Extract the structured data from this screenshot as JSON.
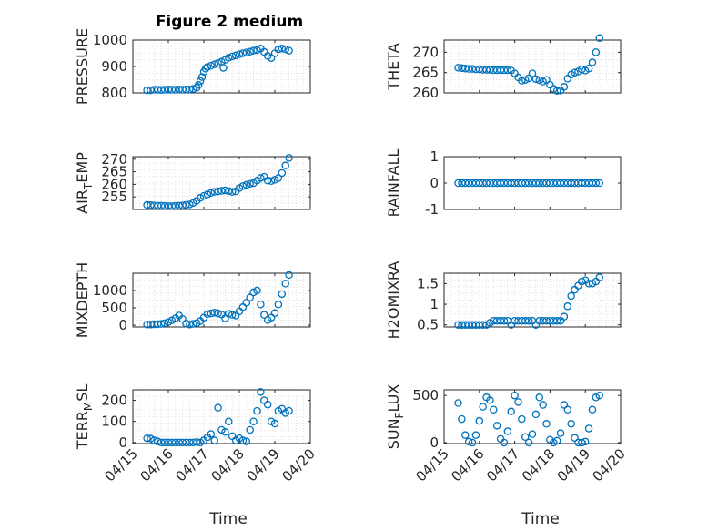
{
  "title": "Figure 2 medium",
  "xlabel": "Time",
  "x_ticks": [
    "04/15",
    "04/16",
    "04/17",
    "04/18",
    "04/19",
    "04/20"
  ],
  "marker_color": "#0072BD",
  "chart_data": [
    {
      "type": "scatter",
      "ylabel": "PRESSURE",
      "ylim": [
        800,
        1000
      ],
      "yticks": [
        "800",
        "900",
        "1000"
      ],
      "grid": true,
      "xlim": [
        0,
        5
      ],
      "x": [
        0.4,
        0.5,
        0.6,
        0.7,
        0.8,
        0.9,
        1.0,
        1.1,
        1.2,
        1.3,
        1.4,
        1.5,
        1.6,
        1.7,
        1.8,
        1.85,
        1.9,
        1.95,
        2.0,
        2.05,
        2.1,
        2.2,
        2.3,
        2.4,
        2.5,
        2.55,
        2.6,
        2.7,
        2.8,
        2.9,
        3.0,
        3.1,
        3.2,
        3.3,
        3.4,
        3.5,
        3.6,
        3.7,
        3.8,
        3.9,
        4.0,
        4.1,
        4.2,
        4.3,
        4.4
      ],
      "y": [
        810,
        810,
        812,
        812,
        811,
        812,
        813,
        812,
        812,
        813,
        812,
        813,
        813,
        815,
        820,
        830,
        845,
        860,
        880,
        892,
        898,
        903,
        908,
        913,
        918,
        895,
        925,
        933,
        938,
        942,
        946,
        950,
        953,
        956,
        960,
        962,
        968,
        955,
        940,
        932,
        950,
        965,
        968,
        965,
        960
      ]
    },
    {
      "type": "scatter",
      "ylabel": "THETA",
      "ylim": [
        260,
        273
      ],
      "yticks": [
        "260",
        "265",
        "270"
      ],
      "grid": true,
      "xlim": [
        0,
        5
      ],
      "x": [
        0.4,
        0.5,
        0.6,
        0.7,
        0.8,
        0.9,
        1.0,
        1.1,
        1.2,
        1.3,
        1.4,
        1.5,
        1.6,
        1.7,
        1.8,
        1.9,
        2.0,
        2.1,
        2.2,
        2.3,
        2.4,
        2.5,
        2.6,
        2.7,
        2.8,
        2.9,
        3.0,
        3.1,
        3.2,
        3.3,
        3.4,
        3.5,
        3.6,
        3.7,
        3.8,
        3.9,
        4.0,
        4.1,
        4.2,
        4.3,
        4.4
      ],
      "y": [
        266.2,
        266.1,
        266.0,
        265.9,
        265.9,
        265.8,
        265.8,
        265.7,
        265.7,
        265.7,
        265.6,
        265.6,
        265.6,
        265.6,
        265.6,
        265.5,
        264.8,
        263.8,
        263.0,
        263.2,
        263.6,
        264.8,
        263.4,
        263.1,
        262.8,
        263.2,
        262.0,
        261.0,
        260.5,
        260.6,
        261.5,
        263.5,
        264.5,
        265.0,
        265.3,
        265.8,
        265.5,
        266.0,
        267.5,
        270.0,
        273.5
      ]
    },
    {
      "type": "scatter",
      "ylabel": "AIR_TEMP",
      "ylim": [
        250,
        271
      ],
      "yticks": [
        "255",
        "260",
        "265",
        "270"
      ],
      "grid": true,
      "xlim": [
        0,
        5
      ],
      "x": [
        0.4,
        0.5,
        0.6,
        0.7,
        0.8,
        0.9,
        1.0,
        1.1,
        1.2,
        1.3,
        1.4,
        1.5,
        1.6,
        1.7,
        1.8,
        1.9,
        2.0,
        2.1,
        2.2,
        2.3,
        2.4,
        2.5,
        2.6,
        2.7,
        2.8,
        2.9,
        3.0,
        3.1,
        3.2,
        3.3,
        3.4,
        3.5,
        3.6,
        3.7,
        3.8,
        3.9,
        4.0,
        4.1,
        4.2,
        4.3,
        4.4
      ],
      "y": [
        251.8,
        251.7,
        251.6,
        251.5,
        251.5,
        251.4,
        251.3,
        251.3,
        251.4,
        251.5,
        251.6,
        251.8,
        252.0,
        252.6,
        253.5,
        254.6,
        255.4,
        256.0,
        256.6,
        257.0,
        257.2,
        257.4,
        257.6,
        257.3,
        257.0,
        257.2,
        258.5,
        259.3,
        259.8,
        260.2,
        260.5,
        261.5,
        262.5,
        263.0,
        261.5,
        261.3,
        261.8,
        262.5,
        264.5,
        267.5,
        270.5
      ]
    },
    {
      "type": "scatter",
      "ylabel": "RAINFALL",
      "ylim": [
        -1,
        1
      ],
      "yticks": [
        "-1",
        "0",
        "1"
      ],
      "grid": false,
      "xlim": [
        0,
        5
      ],
      "x": [
        0.4,
        0.5,
        0.6,
        0.7,
        0.8,
        0.9,
        1.0,
        1.1,
        1.2,
        1.3,
        1.4,
        1.5,
        1.6,
        1.7,
        1.8,
        1.9,
        2.0,
        2.1,
        2.2,
        2.3,
        2.4,
        2.5,
        2.6,
        2.7,
        2.8,
        2.9,
        3.0,
        3.1,
        3.2,
        3.3,
        3.4,
        3.5,
        3.6,
        3.7,
        3.8,
        3.9,
        4.0,
        4.1,
        4.2,
        4.3,
        4.4
      ],
      "y": [
        0,
        0,
        0,
        0,
        0,
        0,
        0,
        0,
        0,
        0,
        0,
        0,
        0,
        0,
        0,
        0,
        0,
        0,
        0,
        0,
        0,
        0,
        0,
        0,
        0,
        0,
        0,
        0,
        0,
        0,
        0,
        0,
        0,
        0,
        0,
        0,
        0,
        0,
        0,
        0,
        0
      ]
    },
    {
      "type": "scatter",
      "ylabel": "MIXDEPTH",
      "ylim": [
        -50,
        1500
      ],
      "yticks": [
        "0",
        "500",
        "1000"
      ],
      "grid": true,
      "xlim": [
        0,
        5
      ],
      "x": [
        0.4,
        0.5,
        0.6,
        0.7,
        0.8,
        0.9,
        1.0,
        1.1,
        1.2,
        1.3,
        1.4,
        1.5,
        1.6,
        1.7,
        1.8,
        1.9,
        2.0,
        2.1,
        2.2,
        2.3,
        2.4,
        2.5,
        2.6,
        2.7,
        2.8,
        2.9,
        3.0,
        3.1,
        3.2,
        3.3,
        3.4,
        3.5,
        3.6,
        3.7,
        3.8,
        3.9,
        4.0,
        4.1,
        4.2,
        4.3,
        4.4
      ],
      "y": [
        20,
        20,
        25,
        30,
        40,
        60,
        90,
        140,
        200,
        280,
        180,
        50,
        20,
        40,
        60,
        120,
        220,
        320,
        340,
        360,
        340,
        310,
        200,
        330,
        300,
        280,
        400,
        520,
        650,
        800,
        950,
        1000,
        600,
        300,
        150,
        220,
        350,
        600,
        900,
        1200,
        1450
      ]
    },
    {
      "type": "scatter",
      "ylabel": "H2OMIXRA",
      "ylim": [
        0.45,
        1.75
      ],
      "yticks": [
        "0.5",
        "1",
        "1.5"
      ],
      "grid": true,
      "xlim": [
        0,
        5
      ],
      "x": [
        0.4,
        0.5,
        0.6,
        0.7,
        0.8,
        0.9,
        1.0,
        1.1,
        1.2,
        1.3,
        1.4,
        1.5,
        1.6,
        1.7,
        1.8,
        1.9,
        2.0,
        2.1,
        2.2,
        2.3,
        2.4,
        2.5,
        2.6,
        2.7,
        2.8,
        2.9,
        3.0,
        3.1,
        3.2,
        3.3,
        3.4,
        3.5,
        3.6,
        3.7,
        3.8,
        3.9,
        4.0,
        4.1,
        4.2,
        4.3,
        4.4
      ],
      "y": [
        0.5,
        0.5,
        0.5,
        0.5,
        0.5,
        0.5,
        0.5,
        0.5,
        0.5,
        0.55,
        0.6,
        0.6,
        0.6,
        0.6,
        0.6,
        0.5,
        0.6,
        0.6,
        0.6,
        0.6,
        0.6,
        0.6,
        0.5,
        0.6,
        0.6,
        0.6,
        0.6,
        0.6,
        0.6,
        0.6,
        0.7,
        0.95,
        1.2,
        1.35,
        1.45,
        1.55,
        1.58,
        1.5,
        1.5,
        1.55,
        1.65
      ]
    },
    {
      "type": "scatter",
      "ylabel": "TERR_MSL",
      "ylim": [
        -5,
        250
      ],
      "yticks": [
        "0",
        "100",
        "200"
      ],
      "grid": true,
      "xlim": [
        0,
        5
      ],
      "x": [
        0.4,
        0.5,
        0.6,
        0.7,
        0.8,
        0.9,
        1.0,
        1.1,
        1.2,
        1.3,
        1.4,
        1.5,
        1.6,
        1.7,
        1.8,
        1.9,
        2.0,
        2.1,
        2.2,
        2.3,
        2.4,
        2.5,
        2.6,
        2.7,
        2.8,
        2.9,
        3.0,
        3.1,
        3.2,
        3.3,
        3.4,
        3.5,
        3.6,
        3.7,
        3.8,
        3.9,
        4.0,
        4.1,
        4.2,
        4.3,
        4.4
      ],
      "y": [
        20,
        18,
        10,
        5,
        0,
        0,
        0,
        0,
        0,
        0,
        0,
        0,
        0,
        0,
        2,
        0,
        10,
        25,
        40,
        10,
        165,
        60,
        50,
        100,
        30,
        10,
        20,
        10,
        5,
        60,
        100,
        150,
        240,
        200,
        180,
        100,
        90,
        150,
        160,
        140,
        150
      ]
    },
    {
      "type": "scatter",
      "ylabel": "SUN_FLUX",
      "ylim": [
        -10,
        560
      ],
      "yticks": [
        "0",
        "500"
      ],
      "grid": false,
      "xlim": [
        0,
        5
      ],
      "x": [
        0.4,
        0.5,
        0.6,
        0.7,
        0.8,
        0.9,
        1.0,
        1.1,
        1.2,
        1.3,
        1.4,
        1.5,
        1.6,
        1.7,
        1.8,
        1.9,
        2.0,
        2.1,
        2.2,
        2.3,
        2.4,
        2.5,
        2.6,
        2.7,
        2.8,
        2.9,
        3.0,
        3.1,
        3.2,
        3.3,
        3.4,
        3.5,
        3.6,
        3.7,
        3.8,
        3.9,
        4.0,
        4.1,
        4.2,
        4.3,
        4.4
      ],
      "y": [
        420,
        250,
        80,
        10,
        0,
        80,
        230,
        380,
        480,
        450,
        350,
        180,
        40,
        0,
        120,
        330,
        500,
        430,
        250,
        60,
        0,
        90,
        300,
        480,
        400,
        200,
        30,
        0,
        20,
        100,
        400,
        350,
        200,
        50,
        0,
        0,
        10,
        150,
        350,
        480,
        500
      ]
    }
  ]
}
